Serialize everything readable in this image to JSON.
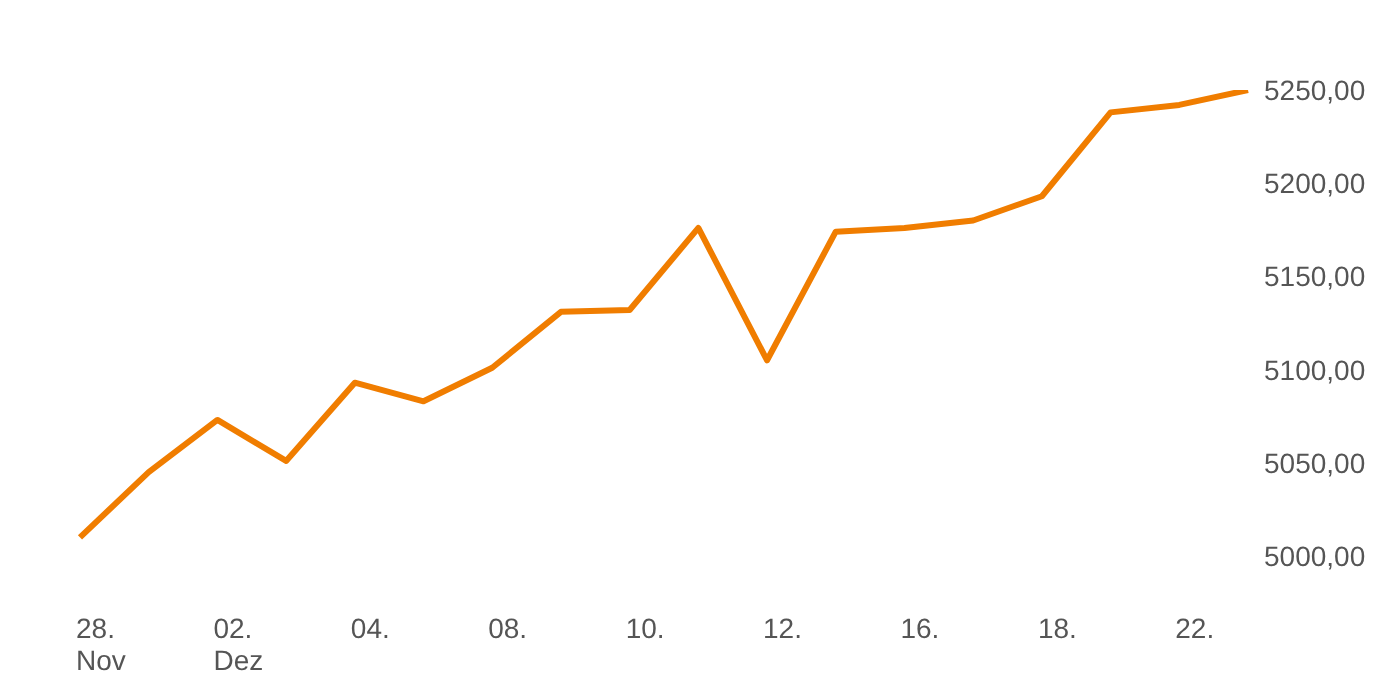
{
  "chart_data": {
    "type": "line",
    "categories": [
      "28. Nov",
      null,
      "02. Dez",
      null,
      "04.",
      null,
      "08.",
      null,
      "10.",
      null,
      "12.",
      null,
      "16.",
      null,
      "18.",
      null,
      "22.",
      null
    ],
    "series": [
      {
        "color": "#f07d00",
        "values": [
          5010,
          5045,
          5073,
          5051,
          5093,
          5083,
          5101,
          5131,
          5132,
          5176,
          5105,
          5174,
          5176,
          5180,
          5193,
          5238,
          5242,
          5250
        ]
      }
    ],
    "ylim": [
      5000,
      5250
    ],
    "yticks": [
      {
        "value": 5000,
        "label": "5000,00"
      },
      {
        "value": 5050,
        "label": "5050,00"
      },
      {
        "value": 5100,
        "label": "5100,00"
      },
      {
        "value": 5150,
        "label": "5150,00"
      },
      {
        "value": 5200,
        "label": "5200,00"
      },
      {
        "value": 5250,
        "label": "5250,00"
      }
    ],
    "grid": false,
    "legend": false,
    "marker": "none",
    "line_style": "solid"
  }
}
